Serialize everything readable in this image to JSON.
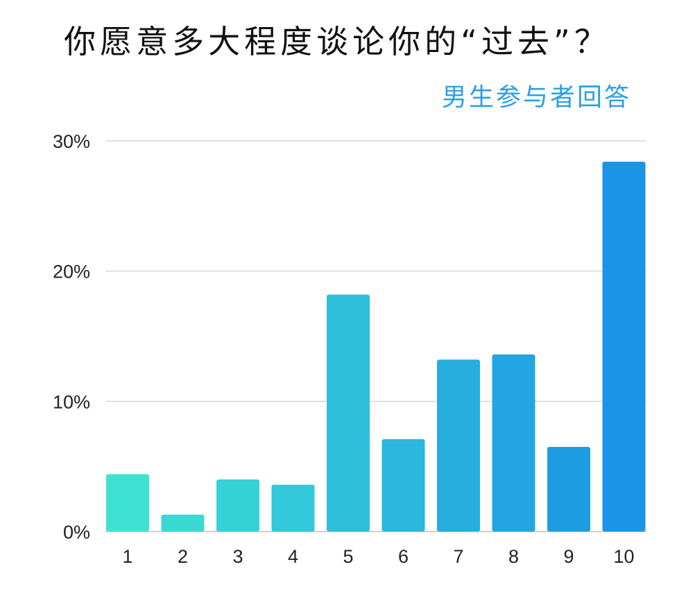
{
  "chart_data": {
    "type": "bar",
    "title": "你愿意多大程度谈论你的“过去”？",
    "subtitle": "男生参与者回答",
    "categories": [
      "1",
      "2",
      "3",
      "4",
      "5",
      "6",
      "7",
      "8",
      "9",
      "10"
    ],
    "values": [
      4.4,
      1.3,
      4.0,
      3.6,
      18.2,
      7.1,
      13.2,
      13.6,
      6.5,
      28.4
    ],
    "ylim": [
      0,
      30
    ],
    "yticks": [
      0,
      10,
      20,
      30
    ],
    "ytick_labels": [
      "0%",
      "10%",
      "20%",
      "30%"
    ],
    "xlabel": "",
    "ylabel": "",
    "grid": true,
    "legend": "none"
  },
  "colors": {
    "title": "#111111",
    "subtitle": "#2b9fe6",
    "gridline": "#d6d6d6",
    "axis": "#cfcfcf",
    "bar_gradient_start": "#3ee2d2",
    "bar_gradient_end": "#1a94e6"
  }
}
